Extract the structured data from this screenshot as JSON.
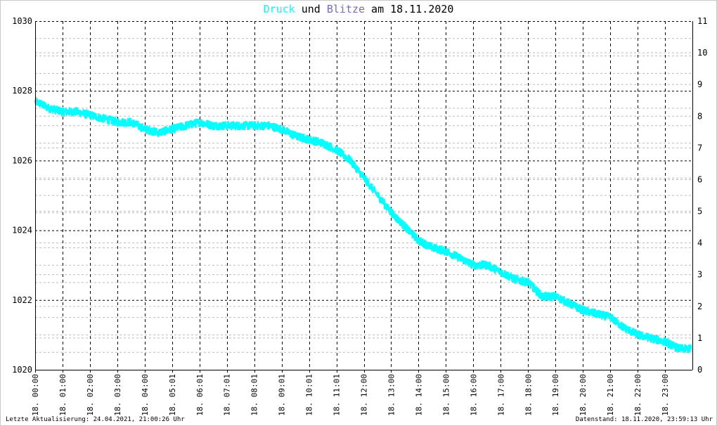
{
  "title": {
    "part1": "Druck",
    "part2": " und ",
    "part3": "Blitze",
    "part4": " am 18.11.2020"
  },
  "colors": {
    "pressure": "#00ffff",
    "lightning": "#7b68c8",
    "grid_major": "#000000",
    "grid_minor": "#bbbbbb"
  },
  "footer": {
    "left": "Letzte Aktualisierung: 24.04.2021, 21:00:26 Uhr",
    "right": "Datenstand: 18.11.2020, 23:59:13 Uhr"
  },
  "chart_data": {
    "type": "line",
    "x_labels": [
      "18. 00:00",
      "18. 01:00",
      "18. 02:00",
      "18. 03:00",
      "18. 04:00",
      "18. 05:01",
      "18. 06:01",
      "18. 07:01",
      "18. 08:01",
      "18. 09:01",
      "18. 10:01",
      "18. 11:01",
      "18. 12:00",
      "18. 13:00",
      "18. 14:00",
      "18. 15:00",
      "18. 16:00",
      "18. 17:00",
      "18. 18:00",
      "18. 19:00",
      "18. 20:00",
      "18. 21:00",
      "18. 22:00",
      "18. 23:00"
    ],
    "left_ticks": [
      1020,
      1022,
      1024,
      1026,
      1028,
      1030
    ],
    "right_ticks": [
      0,
      1,
      2,
      3,
      4,
      5,
      6,
      7,
      8,
      9,
      10,
      11
    ],
    "ylim_left": [
      1020,
      1030
    ],
    "ylim_right": [
      0,
      11
    ],
    "xlim_hours": [
      0,
      24
    ],
    "series": [
      {
        "name": "Druck",
        "axis": "left",
        "x": [
          0,
          0.5,
          1,
          1.5,
          2,
          2.5,
          3,
          3.5,
          4,
          4.5,
          5,
          5.5,
          6,
          6.5,
          7,
          7.5,
          8,
          8.5,
          9,
          9.5,
          10,
          10.5,
          11,
          11.5,
          12,
          12.5,
          13,
          13.5,
          14,
          14.5,
          15,
          15.5,
          16,
          16.5,
          17,
          17.5,
          18,
          18.5,
          19,
          19.5,
          20,
          20.5,
          21,
          21.5,
          22,
          22.5,
          23,
          23.5,
          23.95
        ],
        "y": [
          1027.7,
          1027.5,
          1027.4,
          1027.4,
          1027.3,
          1027.2,
          1027.1,
          1027.1,
          1026.9,
          1026.8,
          1026.9,
          1027.0,
          1027.1,
          1027.0,
          1027.0,
          1027.0,
          1027.0,
          1027.0,
          1026.9,
          1026.7,
          1026.6,
          1026.5,
          1026.3,
          1026.0,
          1025.5,
          1025.0,
          1024.5,
          1024.1,
          1023.7,
          1023.5,
          1023.4,
          1023.2,
          1023.0,
          1023.0,
          1022.8,
          1022.6,
          1022.5,
          1022.1,
          1022.1,
          1021.9,
          1021.7,
          1021.6,
          1021.5,
          1021.2,
          1021.0,
          1020.9,
          1020.8,
          1020.6,
          1020.6
        ]
      }
    ],
    "noise_amplitude": 0.12
  }
}
